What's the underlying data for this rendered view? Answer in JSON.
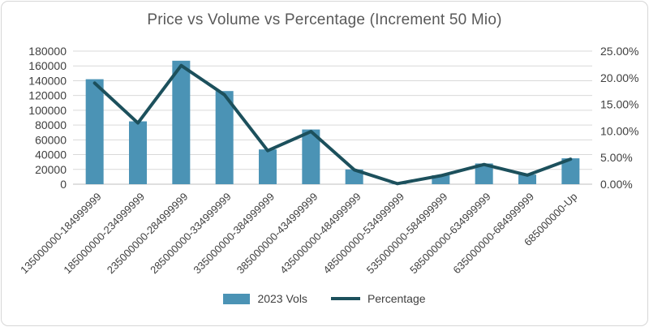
{
  "chart_data": {
    "type": "combo",
    "title": "Price vs Volume vs Percentage (Increment 50 Mio)",
    "categories": [
      "135000000-184999999",
      "185000000-234999999",
      "235000000-284999999",
      "285000000-334999999",
      "335000000-384999999",
      "385000000-434999999",
      "435000000-484999999",
      "485000000-534999999",
      "535000000-584999999",
      "585000000-634999999",
      "635000000-684999999",
      "685000000-Up"
    ],
    "series": [
      {
        "name": "2023 Vols",
        "type": "bar",
        "axis": "left",
        "color": "#4b93b5",
        "values": [
          142000,
          85000,
          167000,
          126000,
          47000,
          74000,
          20000,
          500,
          12000,
          28000,
          13000,
          35000
        ]
      },
      {
        "name": "Percentage",
        "type": "line",
        "axis": "right",
        "color": "#1c505c",
        "values": [
          19.0,
          11.5,
          22.3,
          16.8,
          6.3,
          9.9,
          2.7,
          0.1,
          1.6,
          3.7,
          1.7,
          4.7
        ]
      }
    ],
    "left_axis": {
      "min": 0,
      "max": 180000,
      "step": 20000,
      "tick_labels": [
        "0",
        "20000",
        "40000",
        "60000",
        "80000",
        "100000",
        "120000",
        "140000",
        "160000",
        "180000"
      ]
    },
    "right_axis": {
      "min": 0,
      "max": 25,
      "step": 5,
      "tick_labels": [
        "0.00%",
        "5.00%",
        "10.00%",
        "15.00%",
        "20.00%",
        "25.00%"
      ]
    },
    "grid": true,
    "legend_position": "bottom",
    "colors": {
      "title_text": "#595959",
      "axis_text": "#404040",
      "gridline": "#d9d9d9",
      "baseline": "#bfbfbf",
      "background": "#ffffff",
      "frame_border": "#d6d6d6"
    }
  }
}
